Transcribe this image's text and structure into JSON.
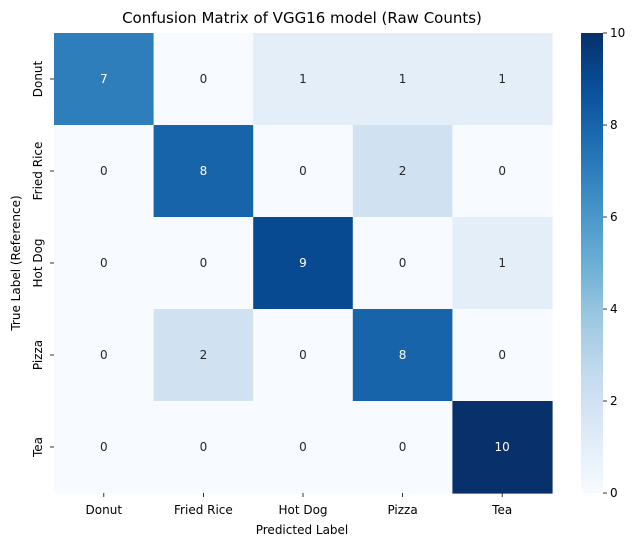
{
  "chart_data": {
    "type": "heatmap",
    "title": "Confusion Matrix of VGG16 model (Raw Counts)",
    "xlabel": "Predicted Label",
    "ylabel": "True Label (Reference)",
    "x_categories": [
      "Donut",
      "Fried Rice",
      "Hot Dog",
      "Pizza",
      "Tea"
    ],
    "y_categories": [
      "Donut",
      "Fried Rice",
      "Hot Dog",
      "Pizza",
      "Tea"
    ],
    "matrix": [
      [
        7,
        0,
        1,
        1,
        1
      ],
      [
        0,
        8,
        0,
        2,
        0
      ],
      [
        0,
        0,
        9,
        0,
        1
      ],
      [
        0,
        2,
        0,
        8,
        0
      ],
      [
        0,
        0,
        0,
        0,
        10
      ]
    ],
    "colorbar": {
      "range": [
        0,
        10
      ],
      "ticks": [
        "0",
        "2",
        "4",
        "6",
        "8",
        "10"
      ],
      "colormap": "Blues"
    }
  }
}
